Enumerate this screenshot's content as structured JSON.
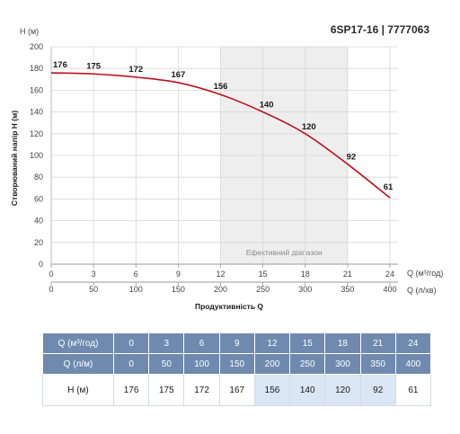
{
  "model_title": "6SP17-16 | 7777063",
  "efficiency_range_label": "Ефективний діапазон",
  "efficiency_range_q": [
    12,
    21
  ],
  "colors": {
    "curve": "#c0101f",
    "range_fill": "#eeeeee",
    "grid": "#d6d6d6",
    "header": "#6f8aae",
    "highlight": "#dbe6f4"
  },
  "chart_data": {
    "type": "line",
    "ylabel": "Створюваний напір H (м)",
    "y_unit": "H (м)",
    "xlabel": "Продуктивність Q",
    "x_unit": "Q (м³/год)",
    "x2_unit": "Q (л/хв)",
    "ylim": [
      0,
      200
    ],
    "y_ticks": [
      0,
      20,
      40,
      60,
      80,
      100,
      120,
      140,
      160,
      180,
      200
    ],
    "xlim": [
      0,
      24
    ],
    "x": [
      0,
      3,
      6,
      9,
      12,
      15,
      18,
      21,
      24
    ],
    "x2": [
      0,
      50,
      100,
      150,
      200,
      250,
      300,
      350,
      400
    ],
    "grid": true,
    "series": [
      {
        "values": [
          176,
          175,
          172,
          167,
          156,
          140,
          120,
          92,
          61
        ]
      }
    ]
  },
  "table": {
    "rows": [
      {
        "label": "Q (м³/год)",
        "values": [
          "0",
          "3",
          "6",
          "9",
          "12",
          "15",
          "18",
          "21",
          "24"
        ]
      },
      {
        "label": "Q (л/м)",
        "values": [
          "0",
          "50",
          "100",
          "150",
          "200",
          "250",
          "300",
          "350",
          "400"
        ]
      },
      {
        "label": "H (м)",
        "values": [
          "176",
          "175",
          "172",
          "167",
          "156",
          "140",
          "120",
          "92",
          "61"
        ]
      }
    ]
  }
}
